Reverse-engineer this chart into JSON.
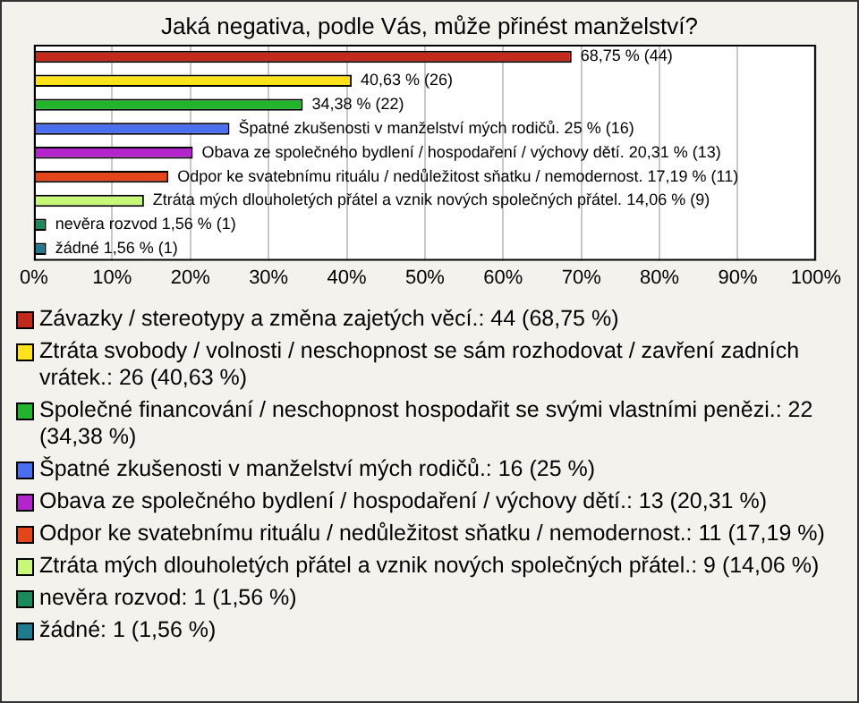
{
  "chart_data": {
    "type": "bar",
    "orientation": "horizontal",
    "title": "Jaká negativa, podle Vás, může přinést manželství?",
    "categories": [
      null,
      null,
      null,
      null,
      null,
      null,
      null,
      null,
      null
    ],
    "values": [
      68.75,
      40.63,
      34.38,
      25,
      20.31,
      17.19,
      14.06,
      1.56,
      1.56
    ],
    "colors": [
      "#c42a1c",
      "#ffe21a",
      "#22b42a",
      "#4a6ef0",
      "#b424cc",
      "#e2461a",
      "#c8f878",
      "#1a8a5a",
      "#1e7a8c"
    ],
    "value_labels": [
      "68,75 % (44)",
      "40,63 % (26)",
      "34,38 % (22)",
      "Špatné zkušenosti v manželství mých rodičů. 25 % (16)",
      "Obava ze společného bydlení / hospodaření / výchovy dětí. 20,31 % (13)",
      "Odpor ke svatebnímu rituálu / nedůležitost sňatku / nemodernost. 17,19 % (11)",
      "Ztráta mých dlouholetých přátel a vznik nových společných přátel. 14,06 % (9)",
      "nevěra rozvod 1,56 % (1)",
      "žádné 1,56 % (1)"
    ],
    "xlim": [
      0,
      100
    ],
    "xticks": [
      {
        "value": 0,
        "label": "0%"
      },
      {
        "value": 10,
        "label": "10%"
      },
      {
        "value": 20,
        "label": "20%"
      },
      {
        "value": 30,
        "label": "30%"
      },
      {
        "value": 40,
        "label": "40%"
      },
      {
        "value": 50,
        "label": "50%"
      },
      {
        "value": 60,
        "label": "60%"
      },
      {
        "value": 70,
        "label": "70%"
      },
      {
        "value": 80,
        "label": "80%"
      },
      {
        "value": 90,
        "label": "90%"
      },
      {
        "value": 100,
        "label": "100%"
      }
    ],
    "grid": "x",
    "tick_labels": "x",
    "annotations": [
      "Závazky / stereotypy a změna zajetých věcí.: 44 (68,75 %)",
      "Ztráta svobody / volnosti / neschopnost se sám rozhodovat / zavření zadních vrátek.: 26 (40,63 %)",
      "Společné financování / neschopnost hospodařit se svými vlastními penězi.: 22 (34,38 %)",
      "Špatné zkušenosti v manželství mých rodičů.: 16 (25 %)",
      "Obava ze společného bydlení / hospodaření / výchovy dětí.: 13 (20,31 %)",
      "Odpor ke svatebnímu rituálu / nedůležitost sňatku / nemodernost.: 11 (17,19 %)",
      "Ztráta mých dlouholetých přátel a vznik nových společných přátel.: 9 (14,06 %)",
      "nevěra rozvod: 1 (1,56 %)",
      "žádné: 1 (1,56 %)"
    ]
  }
}
